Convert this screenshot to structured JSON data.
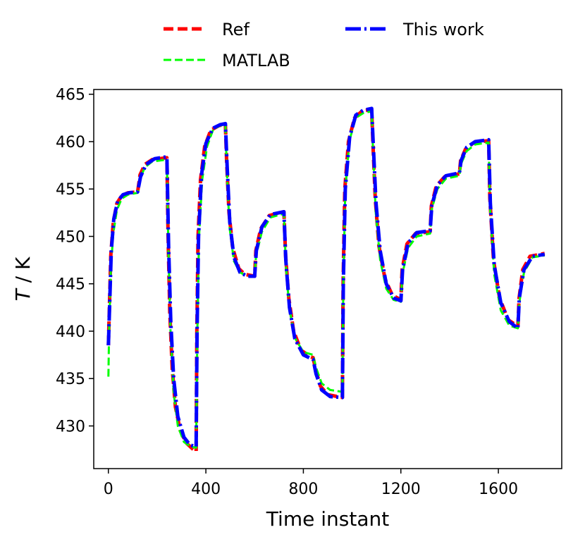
{
  "chart_data": {
    "type": "line",
    "title": "",
    "xlabel": "Time instant",
    "ylabel_italic": "T",
    "ylabel_rest": " / K",
    "xlim": [
      -60,
      1860
    ],
    "ylim": [
      425.5,
      465.5
    ],
    "xticks": [
      0,
      400,
      800,
      1200,
      1600
    ],
    "yticks": [
      430,
      435,
      440,
      445,
      450,
      455,
      460,
      465
    ],
    "grid": false,
    "legend_position": "top, outside plot",
    "series": [
      {
        "name": "Ref",
        "color": "#ff0000",
        "style": "dashed",
        "points": [
          [
            0,
            438.5
          ],
          [
            10,
            448
          ],
          [
            20,
            451.5
          ],
          [
            35,
            453.5
          ],
          [
            55,
            454.3
          ],
          [
            80,
            454.6
          ],
          [
            120,
            454.7
          ],
          [
            130,
            456.5
          ],
          [
            150,
            457.6
          ],
          [
            180,
            458.1
          ],
          [
            240,
            458.3
          ],
          [
            245,
            450
          ],
          [
            252,
            442
          ],
          [
            262,
            436
          ],
          [
            275,
            432
          ],
          [
            295,
            429.5
          ],
          [
            320,
            428.2
          ],
          [
            345,
            427.6
          ],
          [
            360,
            427.3
          ],
          [
            363,
            440
          ],
          [
            368,
            450
          ],
          [
            378,
            456
          ],
          [
            395,
            459.5
          ],
          [
            420,
            461.2
          ],
          [
            455,
            461.7
          ],
          [
            480,
            461.8
          ],
          [
            485,
            458
          ],
          [
            495,
            452.5
          ],
          [
            510,
            448.8
          ],
          [
            535,
            446.6
          ],
          [
            560,
            446
          ],
          [
            600,
            445.8
          ],
          [
            605,
            448.5
          ],
          [
            625,
            450.8
          ],
          [
            660,
            452.2
          ],
          [
            720,
            452.6
          ],
          [
            727,
            448
          ],
          [
            740,
            443.5
          ],
          [
            760,
            440
          ],
          [
            790,
            438
          ],
          [
            830,
            437.3
          ],
          [
            840,
            437.2
          ],
          [
            850,
            436
          ],
          [
            870,
            434.2
          ],
          [
            900,
            433.3
          ],
          [
            960,
            433
          ],
          [
            963,
            445
          ],
          [
            970,
            455
          ],
          [
            985,
            460
          ],
          [
            1010,
            462.5
          ],
          [
            1040,
            463.2
          ],
          [
            1080,
            463.4
          ],
          [
            1085,
            460
          ],
          [
            1095,
            454
          ],
          [
            1110,
            449
          ],
          [
            1135,
            445.5
          ],
          [
            1165,
            443.8
          ],
          [
            1200,
            443.3
          ],
          [
            1205,
            446.5
          ],
          [
            1225,
            449.2
          ],
          [
            1260,
            450.3
          ],
          [
            1320,
            450.5
          ],
          [
            1325,
            453.2
          ],
          [
            1345,
            455.3
          ],
          [
            1380,
            456.3
          ],
          [
            1440,
            456.6
          ],
          [
            1445,
            458
          ],
          [
            1465,
            459.2
          ],
          [
            1500,
            459.9
          ],
          [
            1560,
            460.1
          ],
          [
            1565,
            454
          ],
          [
            1580,
            447.5
          ],
          [
            1605,
            443.5
          ],
          [
            1640,
            441.2
          ],
          [
            1680,
            440.5
          ],
          [
            1685,
            443.5
          ],
          [
            1700,
            446.5
          ],
          [
            1730,
            447.9
          ],
          [
            1790,
            448.2
          ]
        ]
      },
      {
        "name": "MATLAB",
        "color": "#00ff00",
        "style": "dashed",
        "points": [
          [
            0,
            435.2
          ],
          [
            3,
            440
          ],
          [
            10,
            446.5
          ],
          [
            20,
            450.3
          ],
          [
            35,
            452.8
          ],
          [
            55,
            454
          ],
          [
            80,
            454.4
          ],
          [
            120,
            454.6
          ],
          [
            130,
            456.1
          ],
          [
            150,
            457.3
          ],
          [
            180,
            457.9
          ],
          [
            240,
            458.1
          ],
          [
            246,
            449
          ],
          [
            255,
            440
          ],
          [
            268,
            433.5
          ],
          [
            285,
            430
          ],
          [
            310,
            428.3
          ],
          [
            340,
            427.8
          ],
          [
            360,
            427.7
          ],
          [
            365,
            440
          ],
          [
            372,
            450
          ],
          [
            385,
            456
          ],
          [
            405,
            459.5
          ],
          [
            430,
            461.3
          ],
          [
            460,
            461.7
          ],
          [
            480,
            461.8
          ],
          [
            486,
            457
          ],
          [
            497,
            451
          ],
          [
            515,
            447.4
          ],
          [
            540,
            446.2
          ],
          [
            570,
            445.8
          ],
          [
            600,
            445.8
          ],
          [
            606,
            448
          ],
          [
            630,
            450.5
          ],
          [
            665,
            452
          ],
          [
            720,
            452.4
          ],
          [
            728,
            447
          ],
          [
            742,
            442.5
          ],
          [
            765,
            439.3
          ],
          [
            800,
            437.8
          ],
          [
            840,
            437.5
          ],
          [
            850,
            436.3
          ],
          [
            875,
            434.5
          ],
          [
            910,
            433.8
          ],
          [
            960,
            433.6
          ],
          [
            964,
            445
          ],
          [
            972,
            455
          ],
          [
            990,
            460.2
          ],
          [
            1015,
            462.5
          ],
          [
            1045,
            463
          ],
          [
            1080,
            463.2
          ],
          [
            1086,
            459
          ],
          [
            1097,
            452.5
          ],
          [
            1115,
            447.5
          ],
          [
            1140,
            444.5
          ],
          [
            1170,
            443.3
          ],
          [
            1200,
            443.1
          ],
          [
            1206,
            446
          ],
          [
            1230,
            448.8
          ],
          [
            1265,
            450
          ],
          [
            1320,
            450.3
          ],
          [
            1326,
            452.8
          ],
          [
            1350,
            455
          ],
          [
            1385,
            456.1
          ],
          [
            1440,
            456.4
          ],
          [
            1446,
            457.6
          ],
          [
            1470,
            459
          ],
          [
            1505,
            459.7
          ],
          [
            1560,
            459.9
          ],
          [
            1566,
            453
          ],
          [
            1583,
            446
          ],
          [
            1610,
            442.2
          ],
          [
            1645,
            440.6
          ],
          [
            1680,
            440.3
          ],
          [
            1686,
            443
          ],
          [
            1705,
            446.2
          ],
          [
            1740,
            447.8
          ],
          [
            1790,
            448
          ]
        ]
      },
      {
        "name": "This work",
        "color": "#0000ff",
        "style": "dashdot",
        "points": [
          [
            0,
            438.5
          ],
          [
            12,
            448.5
          ],
          [
            22,
            451.8
          ],
          [
            38,
            453.7
          ],
          [
            60,
            454.4
          ],
          [
            85,
            454.6
          ],
          [
            120,
            454.7
          ],
          [
            132,
            456.3
          ],
          [
            155,
            457.6
          ],
          [
            190,
            458.2
          ],
          [
            240,
            458.4
          ],
          [
            247,
            449
          ],
          [
            256,
            441
          ],
          [
            268,
            435
          ],
          [
            285,
            431
          ],
          [
            310,
            428.8
          ],
          [
            335,
            428
          ],
          [
            360,
            427.8
          ],
          [
            364,
            440
          ],
          [
            370,
            450
          ],
          [
            382,
            456.5
          ],
          [
            400,
            459.8
          ],
          [
            428,
            461.4
          ],
          [
            460,
            461.8
          ],
          [
            480,
            461.9
          ],
          [
            487,
            457.5
          ],
          [
            498,
            451.5
          ],
          [
            515,
            447.8
          ],
          [
            540,
            446.2
          ],
          [
            570,
            445.8
          ],
          [
            600,
            445.8
          ],
          [
            607,
            448.5
          ],
          [
            630,
            451
          ],
          [
            665,
            452.3
          ],
          [
            720,
            452.6
          ],
          [
            728,
            447.5
          ],
          [
            743,
            442.5
          ],
          [
            765,
            439.2
          ],
          [
            800,
            437.5
          ],
          [
            840,
            437
          ],
          [
            852,
            435.5
          ],
          [
            875,
            433.8
          ],
          [
            910,
            433.1
          ],
          [
            960,
            433
          ],
          [
            964,
            445
          ],
          [
            972,
            455
          ],
          [
            990,
            460.5
          ],
          [
            1015,
            462.8
          ],
          [
            1045,
            463.3
          ],
          [
            1080,
            463.5
          ],
          [
            1087,
            459.5
          ],
          [
            1098,
            453.5
          ],
          [
            1115,
            448.5
          ],
          [
            1140,
            445
          ],
          [
            1170,
            443.5
          ],
          [
            1200,
            443.2
          ],
          [
            1207,
            446.5
          ],
          [
            1230,
            449.3
          ],
          [
            1265,
            450.4
          ],
          [
            1320,
            450.6
          ],
          [
            1327,
            453.3
          ],
          [
            1350,
            455.4
          ],
          [
            1385,
            456.4
          ],
          [
            1440,
            456.7
          ],
          [
            1447,
            458
          ],
          [
            1470,
            459.4
          ],
          [
            1505,
            460
          ],
          [
            1560,
            460.2
          ],
          [
            1567,
            453.5
          ],
          [
            1583,
            447
          ],
          [
            1610,
            443
          ],
          [
            1645,
            441
          ],
          [
            1680,
            440.3
          ],
          [
            1686,
            443.5
          ],
          [
            1705,
            446.5
          ],
          [
            1740,
            447.9
          ],
          [
            1790,
            448.1
          ]
        ]
      }
    ]
  }
}
